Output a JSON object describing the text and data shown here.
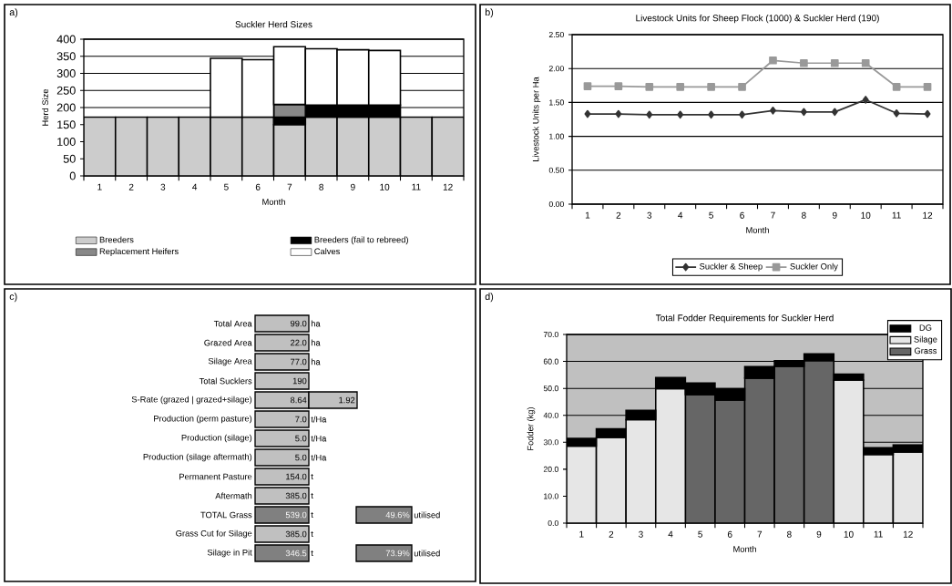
{
  "chart_data": [
    {
      "type": "bar",
      "stacked": true,
      "title": "Suckler Herd Sizes",
      "xlabel": "Month",
      "ylabel": "Herd Size",
      "annotations": [
        "a)"
      ],
      "categories": [
        "1",
        "2",
        "3",
        "4",
        "5",
        "6",
        "7",
        "8",
        "9",
        "10",
        "11",
        "12"
      ],
      "series": [
        {
          "name": "Breeders",
          "color": "#cccccc",
          "values": [
            172,
            172,
            172,
            172,
            172,
            172,
            150,
            172,
            172,
            172,
            172,
            172
          ]
        },
        {
          "name": "Breeders  (fail to rebreed)",
          "color": "#000000",
          "values": [
            null,
            null,
            null,
            null,
            null,
            null,
            22,
            35,
            35,
            35,
            null,
            null
          ]
        },
        {
          "name": "Replacement Heifers",
          "color": "#888888",
          "values": [
            null,
            null,
            null,
            null,
            null,
            null,
            37,
            null,
            null,
            null,
            null,
            null
          ]
        },
        {
          "name": "Calves",
          "color": "#ffffff",
          "values": [
            null,
            null,
            null,
            null,
            172,
            168,
            169,
            165,
            162,
            160,
            null,
            null
          ]
        }
      ],
      "ylim": [
        0,
        400
      ],
      "yticks": [
        0,
        50,
        100,
        150,
        200,
        250,
        300,
        350,
        400
      ],
      "grid": "y",
      "legend": "bottom"
    },
    {
      "type": "line",
      "title": "Livestock Units for Sheep Flock (1000) & Suckler Herd (190)",
      "xlabel": "Month",
      "ylabel": "Livestock Units per Ha",
      "annotations": [
        "b)"
      ],
      "categories": [
        "1",
        "2",
        "3",
        "4",
        "5",
        "6",
        "7",
        "8",
        "9",
        "10",
        "11",
        "12"
      ],
      "series": [
        {
          "name": "Suckler & Sheep",
          "color": "#333333",
          "marker": "diamond",
          "values": [
            1.33,
            1.33,
            1.32,
            1.32,
            1.32,
            1.32,
            1.38,
            1.36,
            1.36,
            1.54,
            1.34,
            1.33
          ]
        },
        {
          "name": "Suckler Only",
          "color": "#999999",
          "marker": "square",
          "values": [
            1.74,
            1.74,
            1.73,
            1.73,
            1.73,
            1.73,
            2.12,
            2.08,
            2.08,
            2.08,
            1.73,
            1.73
          ]
        }
      ],
      "ylim": [
        0,
        2.5
      ],
      "yticks": [
        {
          "value": 0,
          "label": "0.00"
        },
        {
          "value": 0.5,
          "label": "0.50"
        },
        {
          "value": 1,
          "label": "1.00"
        },
        {
          "value": 1.5,
          "label": "1.50"
        },
        {
          "value": 2,
          "label": "2.00"
        },
        {
          "value": 2.5,
          "label": "2.50"
        }
      ],
      "grid": "y",
      "legend": "bottom",
      "line_style": "solid"
    },
    {
      "type": "other",
      "annotations": [
        "c)",
        {
          "text": "ha",
          "y": "Total Area"
        },
        {
          "text": "ha",
          "y": "Grazed Area"
        },
        {
          "text": "ha",
          "y": "Silage Area"
        },
        {
          "text": "t/Ha",
          "y": "Production (perm pasture)"
        },
        {
          "text": "t/Ha",
          "y": "Production (silage)"
        },
        {
          "text": "t/Ha",
          "y": "Production (silage aftermath)"
        },
        {
          "text": "t",
          "y": "Permanent Pasture"
        },
        {
          "text": "t",
          "y": "Aftermath"
        },
        {
          "text": "t",
          "y": "TOTAL Grass"
        },
        {
          "text": "utilised",
          "y": "TOTAL Grass"
        },
        {
          "text": "t",
          "y": "Grass Cut for Silage"
        },
        {
          "text": "t",
          "y": "Silage in Pit"
        },
        {
          "text": "utilised",
          "y": "Silage in Pit"
        }
      ],
      "categories": [
        "Total Area",
        "Grazed Area",
        "Silage Area",
        "Total Sucklers",
        "S-Rate (grazed | grazed+silage)",
        "Production (perm pasture)",
        "Production (silage)",
        "Production (silage aftermath)",
        "Permanent Pasture",
        "Aftermath",
        "TOTAL Grass",
        "Grass Cut for Silage",
        "Silage in Pit"
      ],
      "series": [
        {
          "values": [
            99.0,
            22.0,
            77.0,
            190,
            8.64,
            7.0,
            5.0,
            5.0,
            154.0,
            385.0,
            539.0,
            385.0,
            346.5
          ],
          "value_labels": [
            "99.0",
            "22.0",
            "77.0",
            "190",
            "8.64",
            "7.0",
            "5.0",
            "5.0",
            "154.0",
            "385.0",
            "539.0",
            "385.0",
            "346.5"
          ],
          "colors": [
            "#c0c0c0",
            "#c0c0c0",
            "#c0c0c0",
            "#c0c0c0",
            "#c0c0c0",
            "#c0c0c0",
            "#c0c0c0",
            "#c0c0c0",
            "#c0c0c0",
            "#c0c0c0",
            "#808080",
            "#c0c0c0",
            "#808080"
          ]
        },
        {
          "values": [
            null,
            null,
            null,
            null,
            1.92,
            null,
            null,
            null,
            null,
            null,
            49.6,
            null,
            73.9
          ],
          "value_labels": [
            null,
            null,
            null,
            null,
            "1.92",
            null,
            null,
            null,
            null,
            null,
            "49.6%",
            null,
            "73.9%"
          ],
          "colors": [
            null,
            null,
            null,
            null,
            "#c0c0c0",
            null,
            null,
            null,
            null,
            null,
            "#808080",
            null,
            "#808080"
          ]
        }
      ]
    },
    {
      "type": "bar",
      "stacked": true,
      "title": "Total Fodder Requirements for Suckler Herd",
      "xlabel": "Month",
      "ylabel": "Fodder (kg)",
      "annotations": [
        "d)"
      ],
      "categories": [
        "1",
        "2",
        "3",
        "4",
        "5",
        "6",
        "7",
        "8",
        "9",
        "10",
        "11",
        "12"
      ],
      "series": [
        {
          "name": "Grass",
          "color": "#666666",
          "values": [
            null,
            null,
            null,
            null,
            47.7,
            45.7,
            53.8,
            58.2,
            60.3,
            null,
            null,
            null
          ]
        },
        {
          "name": "Silage",
          "color": "#e6e6e6",
          "values": [
            28.6,
            31.8,
            38.4,
            49.9,
            null,
            null,
            null,
            null,
            null,
            53.1,
            25.5,
            26.4
          ]
        },
        {
          "name": "DG",
          "color": "#000000",
          "values": [
            2.8,
            3.2,
            3.4,
            4.1,
            4.3,
            4.2,
            4.3,
            2.1,
            2.5,
            2.2,
            2.5,
            2.7
          ]
        }
      ],
      "ylim": [
        0,
        70
      ],
      "yticks": [
        {
          "value": 0,
          "label": "0.0"
        },
        {
          "value": 10,
          "label": "10.0"
        },
        {
          "value": 20,
          "label": "20.0"
        },
        {
          "value": 30,
          "label": "30.0"
        },
        {
          "value": 40,
          "label": "40.0"
        },
        {
          "value": 50,
          "label": "50.0"
        },
        {
          "value": 60,
          "label": "60.0"
        },
        {
          "value": 70,
          "label": "70.0"
        }
      ],
      "grid": "y",
      "legend": "top right"
    }
  ]
}
